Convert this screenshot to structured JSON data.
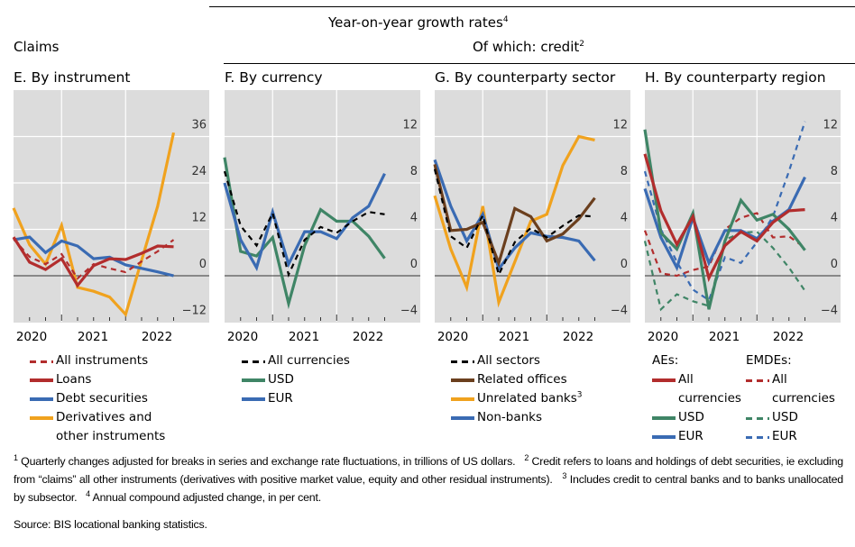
{
  "header": {
    "growth_title": "Year-on-year growth rates",
    "growth_title_note": "4",
    "claims_label": "Claims",
    "credit_label": "Of which: credit",
    "credit_label_note": "2"
  },
  "colors": {
    "panel_bg": "#dcdcdc",
    "grid": "#ffffff",
    "red": "#b22d2d",
    "blue": "#3a6bb3",
    "orange": "#f0a21e",
    "green": "#3f8566",
    "brown": "#6b3f1e",
    "black": "#000000"
  },
  "legends": {
    "E": [
      {
        "label": "All instruments",
        "style": "dash",
        "color": "red"
      },
      {
        "label": "Loans",
        "style": "solid",
        "color": "red"
      },
      {
        "label": "Debt securities",
        "style": "solid",
        "color": "blue"
      },
      {
        "label": "Derivatives and other instruments",
        "style": "solid",
        "color": "orange"
      }
    ],
    "F": [
      {
        "label": "All currencies",
        "style": "dash",
        "color": "black"
      },
      {
        "label": "USD",
        "style": "solid",
        "color": "green"
      },
      {
        "label": "EUR",
        "style": "solid",
        "color": "blue"
      }
    ],
    "G": [
      {
        "label": "All sectors",
        "style": "dash",
        "color": "black"
      },
      {
        "label": "Related offices",
        "style": "solid",
        "color": "brown"
      },
      {
        "label": "Unrelated banks",
        "note": "3",
        "style": "solid",
        "color": "orange"
      },
      {
        "label": "Non-banks",
        "style": "solid",
        "color": "blue"
      }
    ],
    "H": {
      "ae_heading": "AEs:",
      "emde_heading": "EMDEs:",
      "ae": [
        {
          "label": "All currencies",
          "style": "solid",
          "color": "red"
        },
        {
          "label": "USD",
          "style": "solid",
          "color": "green"
        },
        {
          "label": "EUR",
          "style": "solid",
          "color": "blue"
        }
      ],
      "emde": [
        {
          "label": "All currencies",
          "style": "dash",
          "color": "red"
        },
        {
          "label": "USD",
          "style": "dash",
          "color": "green"
        },
        {
          "label": "EUR",
          "style": "dash",
          "color": "blue"
        }
      ]
    }
  },
  "footnotes": [
    {
      "num": "1",
      "text": "Quarterly changes adjusted for breaks in series and exchange rate fluctuations, in trillions of US dollars."
    },
    {
      "num": "2",
      "text": "Credit refers to loans and holdings of debt securities, ie excluding from “claims” all other instruments (derivatives with positive market value, equity and other residual instruments)."
    },
    {
      "num": "3",
      "text": "Includes credit to central banks and to banks unallocated by subsector."
    },
    {
      "num": "4",
      "text": "Annual compound adjusted change, in per cent."
    }
  ],
  "source": "Source: BIS locational banking statistics.",
  "chart_data": [
    {
      "id": "E",
      "type": "line",
      "title": "E. By instrument",
      "x": [
        "2019-Q4",
        "2020-Q1",
        "2020-Q2",
        "2020-Q3",
        "2020-Q4",
        "2021-Q1",
        "2021-Q2",
        "2021-Q3",
        "2021-Q4",
        "2022-Q1",
        "2022-Q2"
      ],
      "xtick_labels": [
        "2020",
        "2021",
        "2022"
      ],
      "ylim": [
        -12,
        48
      ],
      "yticks": [
        -12,
        0,
        12,
        24,
        36
      ],
      "ytick_labels": [
        "−12",
        "0",
        "12",
        "24",
        "36"
      ],
      "grid": true,
      "y_axis_side": "right",
      "series": [
        {
          "name": "Derivatives and other instruments",
          "color": "orange",
          "style": "solid",
          "values": [
            17.5,
            8,
            3,
            13,
            -3,
            -4,
            -5.5,
            -10,
            4,
            18,
            37
          ]
        },
        {
          "name": "Debt securities",
          "color": "blue",
          "style": "solid",
          "values": [
            9.3,
            10,
            6,
            9,
            7.7,
            4.4,
            4.8,
            2.8,
            1.9,
            1,
            0
          ]
        },
        {
          "name": "All instruments",
          "color": "red",
          "style": "dash",
          "values": [
            9.5,
            4.9,
            3,
            5.6,
            -0.7,
            3,
            1.9,
            0.9,
            3.7,
            6.3,
            9.3
          ]
        },
        {
          "name": "Loans",
          "color": "red",
          "style": "solid",
          "values": [
            10,
            3.5,
            1.6,
            4.4,
            -2.5,
            2.6,
            4.4,
            4.2,
            5.8,
            7.7,
            7.5
          ]
        }
      ]
    },
    {
      "id": "F",
      "type": "line",
      "title": "F. By currency",
      "x": [
        "2019-Q4",
        "2020-Q1",
        "2020-Q2",
        "2020-Q3",
        "2020-Q4",
        "2021-Q1",
        "2021-Q2",
        "2021-Q3",
        "2021-Q4",
        "2022-Q1",
        "2022-Q2"
      ],
      "xtick_labels": [
        "2020",
        "2021",
        "2022"
      ],
      "ylim": [
        -4,
        16
      ],
      "yticks": [
        -4,
        0,
        4,
        8,
        12
      ],
      "ytick_labels": [
        "−4",
        "0",
        "4",
        "8",
        "12"
      ],
      "grid": true,
      "y_axis_side": "right",
      "series": [
        {
          "name": "USD",
          "color": "green",
          "style": "solid",
          "values": [
            10.2,
            2.1,
            1.7,
            3.3,
            -2.4,
            2.6,
            5.7,
            4.7,
            4.7,
            3.4,
            1.5
          ]
        },
        {
          "name": "EUR",
          "color": "blue",
          "style": "solid",
          "values": [
            8,
            3.1,
            0.7,
            5.5,
            1,
            3.8,
            3.8,
            3.2,
            5,
            6,
            8.8
          ]
        },
        {
          "name": "All currencies",
          "color": "black",
          "style": "dash",
          "values": [
            9,
            4.3,
            2.6,
            5.4,
            0.1,
            3.1,
            4.2,
            3.7,
            4.7,
            5.5,
            5.3
          ]
        }
      ]
    },
    {
      "id": "G",
      "type": "line",
      "title": "G. By counterparty sector",
      "x": [
        "2019-Q4",
        "2020-Q1",
        "2020-Q2",
        "2020-Q3",
        "2020-Q4",
        "2021-Q1",
        "2021-Q2",
        "2021-Q3",
        "2021-Q4",
        "2022-Q1",
        "2022-Q2"
      ],
      "xtick_labels": [
        "2020",
        "2021",
        "2022"
      ],
      "ylim": [
        -4,
        16
      ],
      "yticks": [
        -4,
        0,
        4,
        8,
        12
      ],
      "ytick_labels": [
        "−4",
        "0",
        "4",
        "8",
        "12"
      ],
      "grid": true,
      "y_axis_side": "right",
      "series": [
        {
          "name": "Unrelated banks",
          "color": "orange",
          "style": "solid",
          "values": [
            6.9,
            2.3,
            -1,
            6,
            -2.3,
            1.2,
            4.7,
            5.3,
            9.5,
            12,
            11.7
          ]
        },
        {
          "name": "Non-banks",
          "color": "blue",
          "style": "solid",
          "values": [
            10,
            6,
            3,
            5.3,
            0.6,
            2.4,
            3.7,
            3.4,
            3.3,
            3,
            1.3
          ]
        },
        {
          "name": "Related offices",
          "color": "brown",
          "style": "solid",
          "values": [
            9.6,
            3.9,
            4,
            4.6,
            1.1,
            5.8,
            5.1,
            3,
            3.6,
            4.9,
            6.7
          ]
        },
        {
          "name": "All sectors",
          "color": "black",
          "style": "dash",
          "values": [
            9.2,
            3.4,
            2.4,
            5.2,
            0.1,
            2.9,
            4.1,
            3.3,
            4.3,
            5.2,
            5.1
          ]
        }
      ]
    },
    {
      "id": "H",
      "type": "line",
      "title": "H. By counterparty region",
      "x": [
        "2019-Q4",
        "2020-Q1",
        "2020-Q2",
        "2020-Q3",
        "2020-Q4",
        "2021-Q1",
        "2021-Q2",
        "2021-Q3",
        "2021-Q4",
        "2022-Q1",
        "2022-Q2"
      ],
      "xtick_labels": [
        "2020",
        "2021",
        "2022"
      ],
      "ylim": [
        -4,
        16
      ],
      "yticks": [
        -4,
        0,
        4,
        8,
        12
      ],
      "ytick_labels": [
        "−4",
        "0",
        "4",
        "8",
        "12"
      ],
      "grid": true,
      "y_axis_side": "right",
      "series": [
        {
          "name": "EMDEs: EUR",
          "color": "blue",
          "style": "dash",
          "values": [
            9,
            4,
            1.2,
            -1.2,
            -2.1,
            1.6,
            1.1,
            2.9,
            5.1,
            9,
            13.3
          ]
        },
        {
          "name": "EMDEs: USD",
          "color": "green",
          "style": "dash",
          "values": [
            3,
            -2.9,
            -1.6,
            -2.2,
            -2.6,
            3.1,
            3.7,
            3.8,
            2.4,
            0.7,
            -1.3
          ]
        },
        {
          "name": "EMDEs: All currencies",
          "color": "red",
          "style": "dash",
          "values": [
            3.9,
            0.2,
            0,
            0.5,
            0.8,
            4,
            5,
            5.4,
            3.3,
            3.4,
            2.4
          ]
        },
        {
          "name": "AEs: EUR",
          "color": "blue",
          "style": "solid",
          "values": [
            7.5,
            3.3,
            0.7,
            5,
            1.1,
            3.9,
            3.9,
            3.2,
            4.7,
            5.7,
            8.5
          ]
        },
        {
          "name": "AEs: USD",
          "color": "green",
          "style": "solid",
          "values": [
            12.6,
            3.7,
            2.3,
            5.4,
            -2.9,
            3,
            6.5,
            4.8,
            5.3,
            4,
            2.2
          ]
        },
        {
          "name": "AEs: All currencies",
          "color": "red",
          "style": "solid",
          "values": [
            10.5,
            5.6,
            2.7,
            5.1,
            -0.2,
            2.6,
            3.8,
            3,
            4.6,
            5.6,
            5.7
          ]
        }
      ]
    }
  ]
}
